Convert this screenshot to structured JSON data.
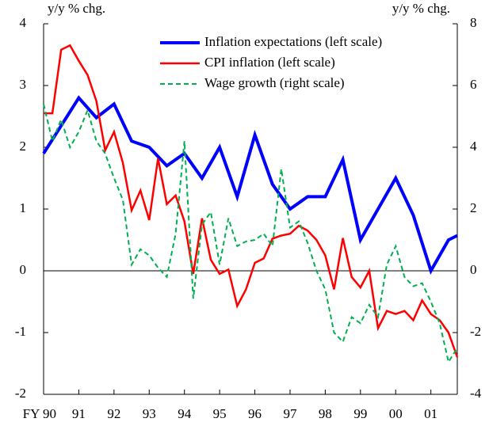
{
  "chart_data": {
    "type": "line",
    "ylabel": "y/y % chg.",
    "y2label": "y/y % chg.",
    "xlim": [
      90,
      101.75
    ],
    "xticks": [
      {
        "value": 90,
        "label": "FY 90"
      },
      91,
      92,
      93,
      94,
      95,
      96,
      97,
      98,
      99,
      {
        "value": 100,
        "label": "00"
      },
      {
        "value": 101,
        "label": "01"
      }
    ],
    "ylim": [
      -2,
      4
    ],
    "yticks": [
      -2,
      -1,
      0,
      1,
      2,
      3,
      4
    ],
    "y2lim": [
      -4,
      8
    ],
    "y2ticks": [
      -4,
      -2,
      0,
      2,
      4,
      6,
      8
    ],
    "legend": "upper right",
    "series": [
      {
        "name": "Inflation expectations (left scale)",
        "color": "#0000ff",
        "width": 4,
        "dash": false,
        "x": [
          90,
          91,
          91.5,
          92,
          92.5,
          93,
          93.5,
          94,
          94.5,
          95,
          95.5,
          96,
          96.5,
          97,
          97.5,
          98,
          98.5,
          99,
          99.5,
          100,
          100.5,
          101,
          101.5,
          101.75
        ],
        "values": [
          1.9,
          2.8,
          2.48,
          2.7,
          2.1,
          2.0,
          1.7,
          1.9,
          1.5,
          2.0,
          1.2,
          2.2,
          1.4,
          1.0,
          1.2,
          1.2,
          1.8,
          0.5,
          1.0,
          1.5,
          0.9,
          0.0,
          0.5,
          0.57
        ]
      },
      {
        "name": "CPI inflation (left scale)",
        "color": "#ff0000",
        "width": 2.5,
        "dash": false,
        "x": [
          90,
          90.25,
          90.5,
          90.75,
          91,
          91.25,
          91.5,
          91.75,
          92,
          92.25,
          92.5,
          92.75,
          93,
          93.25,
          93.5,
          93.75,
          94,
          94.25,
          94.5,
          94.75,
          95,
          95.25,
          95.5,
          95.75,
          96,
          96.25,
          96.5,
          96.75,
          97,
          97.25,
          97.5,
          97.75,
          98,
          98.25,
          98.5,
          98.75,
          99,
          99.25,
          99.5,
          99.75,
          100,
          100.25,
          100.5,
          100.75,
          101,
          101.25,
          101.5,
          101.75
        ],
        "values": [
          2.55,
          2.55,
          3.58,
          3.65,
          3.4,
          3.17,
          2.75,
          1.95,
          2.25,
          1.75,
          0.98,
          1.3,
          0.82,
          1.82,
          1.08,
          1.22,
          0.8,
          -0.05,
          0.85,
          0.18,
          -0.05,
          0.02,
          -0.57,
          -0.3,
          0.13,
          0.2,
          0.52,
          0.57,
          0.6,
          0.73,
          0.65,
          0.5,
          0.25,
          -0.3,
          0.53,
          -0.1,
          -0.27,
          0.0,
          -0.93,
          -0.65,
          -0.7,
          -0.65,
          -0.8,
          -0.48,
          -0.7,
          -0.8,
          -1.0,
          -1.4
        ]
      },
      {
        "name": "Wage growth (right scale)",
        "color": "#00b050",
        "width": 2,
        "dash": true,
        "axis": "y2",
        "x": [
          90,
          90.25,
          90.5,
          90.75,
          91,
          91.25,
          91.5,
          91.75,
          92,
          92.25,
          92.5,
          92.75,
          93,
          93.25,
          93.5,
          93.75,
          94,
          94.25,
          94.5,
          94.75,
          95,
          95.25,
          95.5,
          95.75,
          96,
          96.25,
          96.5,
          96.75,
          97,
          97.25,
          97.5,
          97.75,
          98,
          98.25,
          98.5,
          98.75,
          99,
          99.25,
          99.5,
          99.75,
          100,
          100.25,
          100.5,
          100.75,
          101,
          101.25,
          101.5,
          101.75
        ],
        "values": [
          5.4,
          4.2,
          4.9,
          4.0,
          4.5,
          5.2,
          4.2,
          3.8,
          3.0,
          2.3,
          0.2,
          0.7,
          0.5,
          0.1,
          -0.2,
          1.2,
          4.2,
          -0.9,
          1.5,
          1.9,
          0.2,
          1.7,
          0.8,
          0.95,
          1.0,
          1.2,
          0.8,
          3.3,
          1.4,
          1.6,
          0.9,
          0.0,
          -0.6,
          -2.0,
          -2.3,
          -1.5,
          -1.7,
          -1.1,
          -1.5,
          0.2,
          0.8,
          -0.2,
          -0.5,
          -0.4,
          -1.0,
          -1.7,
          -2.95,
          -2.5
        ]
      }
    ]
  }
}
